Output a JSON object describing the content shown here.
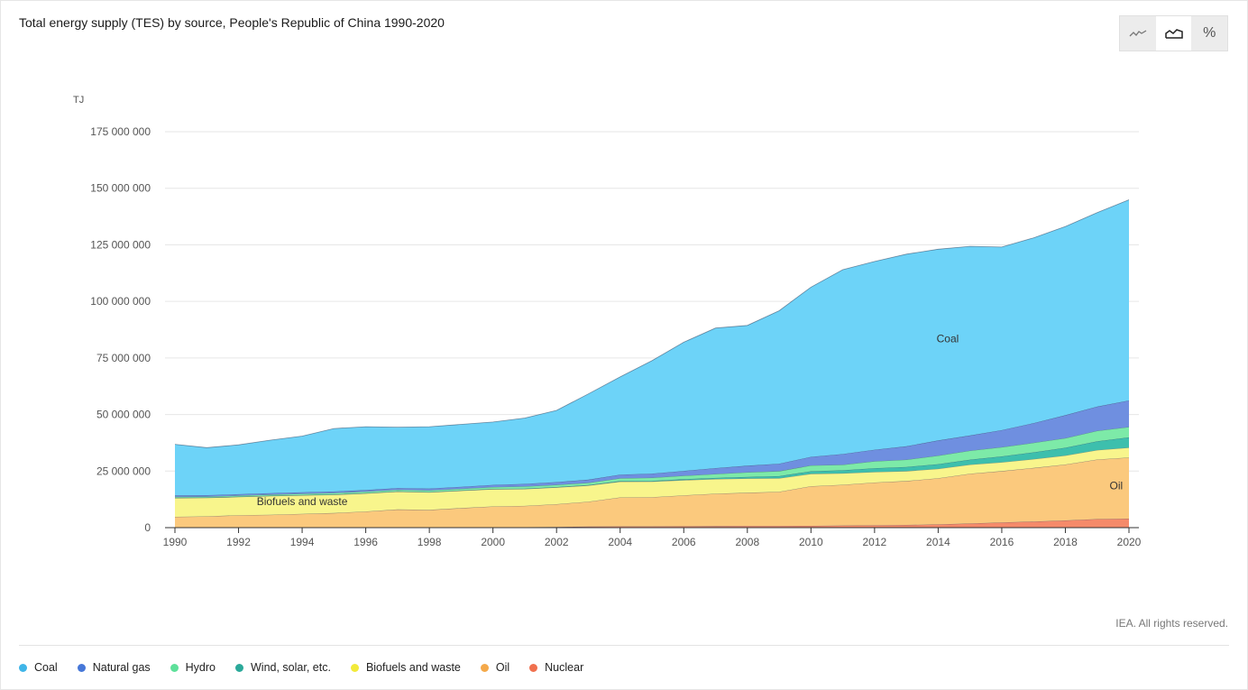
{
  "title": "Total energy supply (TES) by source, People's Republic of China 1990-2020",
  "toggle": {
    "options": [
      {
        "name": "line-chart-icon",
        "active": false
      },
      {
        "name": "area-chart-icon",
        "active": true
      },
      {
        "name": "percent-icon",
        "label": "%",
        "active": false
      }
    ]
  },
  "credit": "IEA. All rights reserved.",
  "colors": {
    "Coal": "#6dd3f8",
    "Natural gas": "#6f8fe0",
    "Hydro": "#7deaa8",
    "Wind, solar, etc.": "#3dbfad",
    "Biofuels and waste": "#f8f58c",
    "Oil": "#fbc97d",
    "Nuclear": "#f58a6a"
  },
  "legend": [
    {
      "label": "Coal",
      "color": "#3fb5e8"
    },
    {
      "label": "Natural gas",
      "color": "#4677d8"
    },
    {
      "label": "Hydro",
      "color": "#5ee09a"
    },
    {
      "label": "Wind, solar, etc.",
      "color": "#2ba99a"
    },
    {
      "label": "Biofuels and waste",
      "color": "#f2ea3a"
    },
    {
      "label": "Oil",
      "color": "#f4a94a"
    },
    {
      "label": "Nuclear",
      "color": "#f0704e"
    }
  ],
  "chart_data": {
    "type": "area",
    "stacked": true,
    "title": "Total energy supply (TES) by source, People's Republic of China 1990-2020",
    "ylabel": "TJ",
    "ylim": [
      0,
      175000000
    ],
    "yticks": [
      0,
      25000000,
      50000000,
      75000000,
      100000000,
      125000000,
      150000000,
      175000000
    ],
    "ytick_labels": [
      "0",
      "25 000 000",
      "50 000 000",
      "75 000 000",
      "100 000 000",
      "125 000 000",
      "150 000 000",
      "175 000 000"
    ],
    "xticks": [
      1990,
      1992,
      1994,
      1996,
      1998,
      2000,
      2002,
      2004,
      2006,
      2008,
      2010,
      2012,
      2014,
      2016,
      2018,
      2020
    ],
    "x": [
      1990,
      1991,
      1992,
      1993,
      1994,
      1995,
      1996,
      1997,
      1998,
      1999,
      2000,
      2001,
      2002,
      2003,
      2004,
      2005,
      2006,
      2007,
      2008,
      2009,
      2010,
      2011,
      2012,
      2013,
      2014,
      2015,
      2016,
      2017,
      2018,
      2019,
      2020
    ],
    "grid": true,
    "legend_position": "bottom",
    "area_labels": [
      {
        "series": "Coal",
        "text": "Coal",
        "x": 2014.3,
        "y": 82000000
      },
      {
        "series": "Biofuels and waste",
        "text": "Biofuels and waste",
        "x": 1994,
        "y": 10000000
      },
      {
        "series": "Oil",
        "text": "Oil",
        "x": 2019.6,
        "y": 17000000
      }
    ],
    "series": [
      {
        "name": "Nuclear",
        "values": [
          0,
          0,
          0,
          0,
          100000,
          150000,
          150000,
          150000,
          150000,
          150000,
          180000,
          200000,
          270000,
          470000,
          540000,
          570000,
          590000,
          680000,
          740000,
          760000,
          810000,
          940000,
          1050000,
          1210000,
          1450000,
          1850000,
          2300000,
          2700000,
          3200000,
          3800000,
          4000000
        ]
      },
      {
        "name": "Oil",
        "values": [
          4800000,
          5000000,
          5500000,
          5700000,
          6000000,
          6300000,
          7000000,
          7900000,
          7700000,
          8500000,
          9200000,
          9400000,
          10100000,
          11000000,
          12800000,
          12900000,
          13700000,
          14300000,
          14700000,
          15100000,
          17500000,
          18000000,
          18900000,
          19400000,
          20400000,
          22000000,
          22700000,
          23700000,
          24700000,
          26300000,
          27000000
        ]
      },
      {
        "name": "Biofuels and waste",
        "values": [
          8300000,
          8200000,
          8100000,
          8300000,
          8200000,
          8100000,
          8000000,
          7900000,
          7800000,
          7700000,
          7600000,
          7500000,
          7400000,
          7200000,
          7000000,
          6900000,
          6700000,
          6500000,
          6300000,
          6000000,
          5500000,
          5100000,
          4700000,
          4400000,
          4200000,
          4000000,
          3900000,
          3900000,
          4000000,
          4200000,
          4400000
        ]
      },
      {
        "name": "Wind, solar, etc.",
        "values": [
          100000,
          100000,
          100000,
          100000,
          100000,
          100000,
          100000,
          100000,
          100000,
          100000,
          150000,
          150000,
          150000,
          200000,
          250000,
          300000,
          400000,
          500000,
          700000,
          900000,
          1100000,
          1300000,
          1600000,
          1800000,
          2000000,
          2200000,
          2600000,
          3000000,
          3400000,
          3900000,
          4500000
        ]
      },
      {
        "name": "Hydro",
        "values": [
          450000,
          450000,
          480000,
          540000,
          600000,
          680000,
          680000,
          700000,
          740000,
          730000,
          800000,
          990000,
          1000000,
          1000000,
          1270000,
          1420000,
          1570000,
          1740000,
          2040000,
          2220000,
          2580000,
          2480000,
          3100000,
          3250000,
          3800000,
          4000000,
          4100000,
          4200000,
          4300000,
          4600000,
          4600000
        ]
      },
      {
        "name": "Natural gas",
        "values": [
          580000,
          600000,
          600000,
          620000,
          650000,
          670000,
          690000,
          760000,
          800000,
          870000,
          960000,
          1100000,
          1200000,
          1350000,
          1570000,
          1790000,
          2100000,
          2600000,
          2900000,
          3300000,
          3800000,
          4700000,
          5100000,
          5900000,
          6700000,
          6700000,
          7500000,
          8700000,
          10100000,
          10700000,
          11700000
        ]
      },
      {
        "name": "Coal",
        "values": [
          22600000,
          21000000,
          21800000,
          23400000,
          24800000,
          27800000,
          28000000,
          26900000,
          27300000,
          27600000,
          27800000,
          29100000,
          31700000,
          37900000,
          43200000,
          49900000,
          56900000,
          61900000,
          62000000,
          67600000,
          75000000,
          81500000,
          83200000,
          84900000,
          84500000,
          83600000,
          80900000,
          81900000,
          83400000,
          85700000,
          88700000
        ]
      }
    ]
  }
}
